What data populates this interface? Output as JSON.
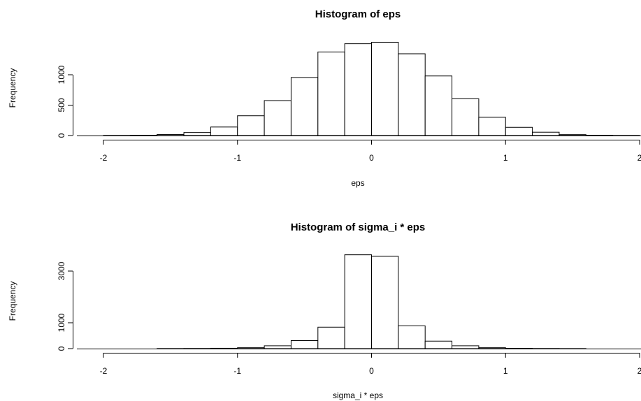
{
  "chart_data": [
    {
      "type": "bar",
      "title": "Histogram of eps",
      "xlabel": "eps",
      "ylabel": "Frequency",
      "xlim": [
        -2,
        2
      ],
      "ylim": [
        0,
        1500
      ],
      "x_ticks": [
        -2,
        -1,
        0,
        1,
        2
      ],
      "y_ticks": [
        0,
        500,
        1000
      ],
      "bin_width": 0.2,
      "bins": [
        {
          "x0": -2.0,
          "value": 1
        },
        {
          "x0": -1.8,
          "value": 4
        },
        {
          "x0": -1.6,
          "value": 18
        },
        {
          "x0": -1.4,
          "value": 50
        },
        {
          "x0": -1.2,
          "value": 140
        },
        {
          "x0": -1.0,
          "value": 325
        },
        {
          "x0": -0.8,
          "value": 575
        },
        {
          "x0": -0.6,
          "value": 955
        },
        {
          "x0": -0.4,
          "value": 1375
        },
        {
          "x0": -0.2,
          "value": 1510
        },
        {
          "x0": 0.0,
          "value": 1535
        },
        {
          "x0": 0.2,
          "value": 1345
        },
        {
          "x0": 0.4,
          "value": 980
        },
        {
          "x0": 0.6,
          "value": 605
        },
        {
          "x0": 0.8,
          "value": 300
        },
        {
          "x0": 1.0,
          "value": 135
        },
        {
          "x0": 1.2,
          "value": 55
        },
        {
          "x0": 1.4,
          "value": 15
        },
        {
          "x0": 1.6,
          "value": 4
        },
        {
          "x0": 1.8,
          "value": 1
        }
      ]
    },
    {
      "type": "bar",
      "title": "Histogram of sigma_i * eps",
      "xlabel": "sigma_i * eps",
      "ylabel": "Frequency",
      "xlim": [
        -2,
        2
      ],
      "ylim": [
        0,
        3600
      ],
      "x_ticks": [
        -2,
        -1,
        0,
        1,
        2
      ],
      "y_ticks": [
        0,
        1000,
        3000
      ],
      "bin_width": 0.2,
      "bins": [
        {
          "x0": -2.0,
          "value": 0
        },
        {
          "x0": -1.8,
          "value": 0
        },
        {
          "x0": -1.6,
          "value": 2
        },
        {
          "x0": -1.4,
          "value": 5
        },
        {
          "x0": -1.2,
          "value": 15
        },
        {
          "x0": -1.0,
          "value": 35
        },
        {
          "x0": -0.8,
          "value": 110
        },
        {
          "x0": -0.6,
          "value": 310
        },
        {
          "x0": -0.4,
          "value": 830
        },
        {
          "x0": -0.2,
          "value": 3630
        },
        {
          "x0": 0.0,
          "value": 3570
        },
        {
          "x0": 0.2,
          "value": 880
        },
        {
          "x0": 0.4,
          "value": 290
        },
        {
          "x0": 0.6,
          "value": 110
        },
        {
          "x0": 0.8,
          "value": 35
        },
        {
          "x0": 1.0,
          "value": 12
        },
        {
          "x0": 1.2,
          "value": 4
        },
        {
          "x0": 1.4,
          "value": 1
        },
        {
          "x0": 1.6,
          "value": 0
        },
        {
          "x0": 1.8,
          "value": 0
        }
      ]
    }
  ]
}
